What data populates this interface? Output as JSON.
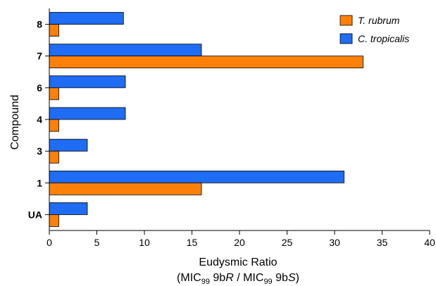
{
  "chart_data": {
    "type": "bar",
    "orientation": "horizontal",
    "categories": [
      "8",
      "7",
      "6",
      "4",
      "3",
      "1",
      "UA"
    ],
    "series": [
      {
        "name": "T. rubrum",
        "color": "#fd8109",
        "values": [
          1,
          33,
          1,
          1,
          1,
          16,
          1
        ]
      },
      {
        "name": "C. tropicalis",
        "color": "#1f6cf5",
        "values": [
          7.8,
          16,
          8,
          8,
          4,
          31,
          4
        ]
      }
    ],
    "xlabel": "Eudysmic Ratio",
    "xlabel_sub": {
      "open": "(MIC",
      "sub1": "99",
      "mid1": " 9b",
      "italic1": "R",
      "mid2": " / MIC",
      "sub2": "99",
      "mid3": " 9b",
      "italic2": "S",
      "close": ")"
    },
    "ylabel": "Compound",
    "xlim": [
      0,
      40
    ],
    "xticks": [
      0,
      5,
      10,
      15,
      20,
      25,
      30,
      35,
      40
    ],
    "grid": false,
    "legend_position": "top-right"
  }
}
